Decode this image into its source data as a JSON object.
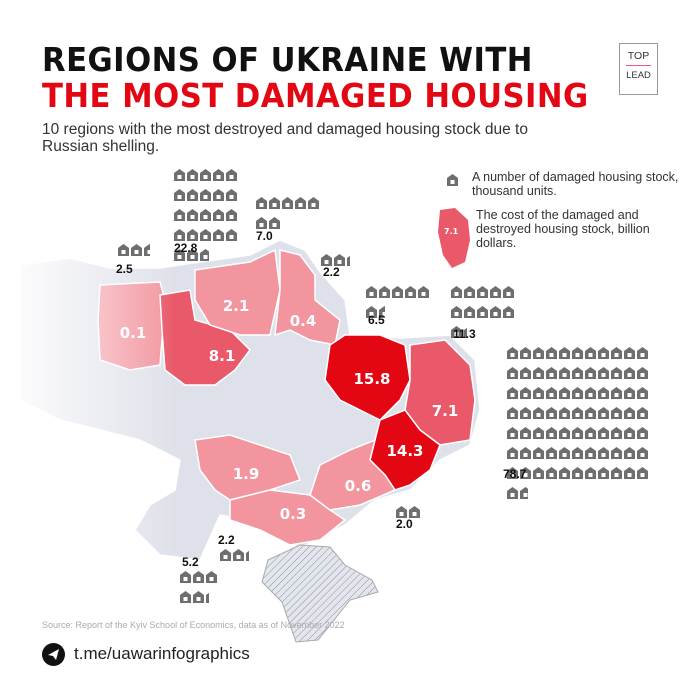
{
  "title_line1": "REGIONS OF UKRAINE WITH",
  "title_line2": "THE MOST DAMAGED HOUSING",
  "subtitle": "10 regions with the most destroyed and damaged housing stock due to Russian shelling.",
  "logo": {
    "top": "TOP",
    "bottom": "LEAD"
  },
  "legend": {
    "housing_text": "A number of damaged housing stock, thousand units.",
    "cost_text": "The cost of the damaged and destroyed housing stock, billion dollars.",
    "cost_sample": "7.1"
  },
  "colors": {
    "dark": "#e30613",
    "medium": "#e9596a",
    "light": "#f2959f",
    "base": "#dfe1ea",
    "house": "#6e6e6e"
  },
  "regions": [
    {
      "cost": "0.1",
      "housing": "2.5",
      "housing_value": 2.5,
      "shade": "light"
    },
    {
      "cost": "8.1",
      "housing": "22.8",
      "housing_value": 22.8,
      "shade": "medium"
    },
    {
      "cost": "2.1",
      "housing": "7.0",
      "housing_value": 7.0,
      "shade": "light"
    },
    {
      "cost": "0.4",
      "housing": "2.2",
      "housing_value": 2.2,
      "shade": "light"
    },
    {
      "cost": "15.8",
      "housing": "6.5",
      "housing_value": 6.5,
      "shade": "dark"
    },
    {
      "cost": "7.1",
      "housing": "11.3",
      "housing_value": 11.3,
      "shade": "medium"
    },
    {
      "cost": "14.3",
      "housing": "78.7",
      "housing_value": 78.7,
      "shade": "dark"
    },
    {
      "cost": "1.9",
      "housing": "5.2",
      "housing_value": 5.2,
      "shade": "light"
    },
    {
      "cost": "0.3",
      "housing": "2.2",
      "housing_value": 2.2,
      "shade": "light"
    },
    {
      "cost": "0.6",
      "housing": "2.0",
      "housing_value": 2.0,
      "shade": "light"
    }
  ],
  "source": "Source: Report of the Kyiv School of Economics, data as of November 2022",
  "telegram": "t.me/uawarinfographics"
}
